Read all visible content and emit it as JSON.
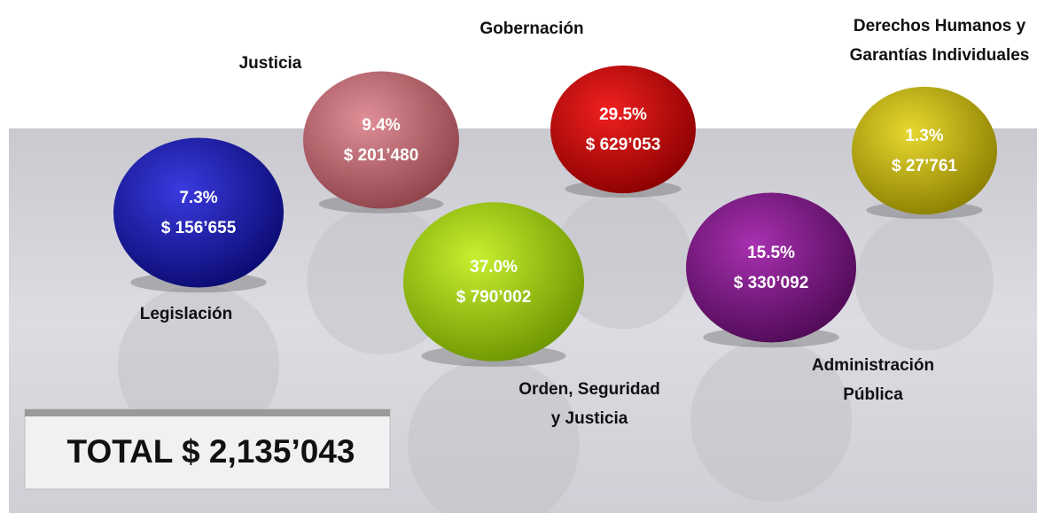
{
  "items": [
    {
      "label": [
        "Legislación"
      ],
      "percent": "7.3%",
      "amount": "$ 156’655"
    },
    {
      "label": [
        "Justicia"
      ],
      "percent": "9.4%",
      "amount": "$ 201’480"
    },
    {
      "label": [
        "Gobernación"
      ],
      "percent": "29.5%",
      "amount": "$ 629’053"
    },
    {
      "label": [
        "Orden, Seguridad",
        "y Justicia"
      ],
      "percent": "37.0%",
      "amount": "$ 790’002"
    },
    {
      "label": [
        "Administración",
        "Pública"
      ],
      "percent": "15.5%",
      "amount": "$ 330’092"
    },
    {
      "label": [
        "Derechos Humanos y",
        "Garantías Individuales"
      ],
      "percent": "1.3%",
      "amount": "$ 27’761"
    }
  ],
  "total": "TOTAL $ 2,135’043"
}
